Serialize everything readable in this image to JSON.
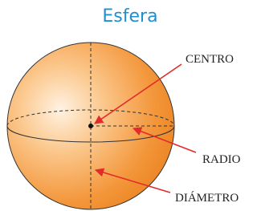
{
  "title": "Esfera",
  "labels": {
    "center": "CENTRO",
    "radius": "RADIO",
    "diameter": "DIÁMETRO"
  }
}
